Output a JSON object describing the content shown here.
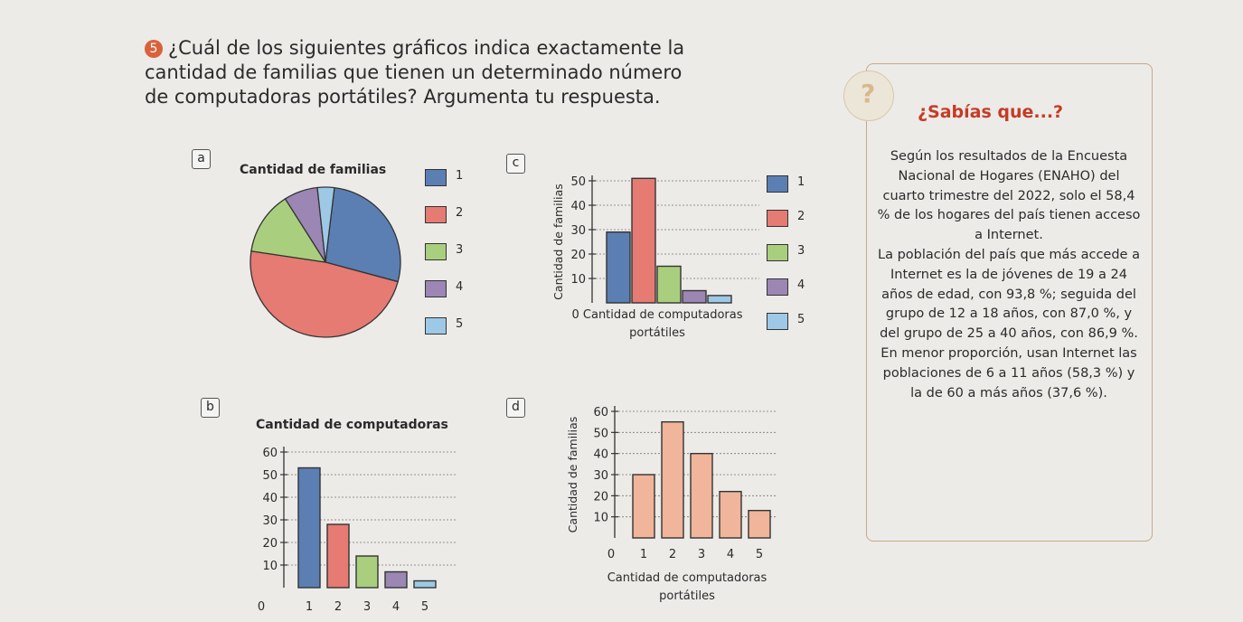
{
  "question": {
    "number": "5",
    "lines": [
      "¿Cuál de los siguientes gráficos indica exactamente la",
      "cantidad de familias que tienen un determinado número",
      "de computadoras portátiles? Argumenta tu respuesta."
    ]
  },
  "options": {
    "a": "a",
    "b": "b",
    "c": "c",
    "d": "d"
  },
  "sidebar": {
    "title": "¿Sabías que...?",
    "para1": "Según los resultados de la Encuesta Nacional de Hogares (ENAHO) del cuarto trimestre del 2022, solo el 58,4 % de los hogares del país tienen acceso a Internet.",
    "para2": "La población del país que más accede a Internet es la de jóvenes de 19 a 24 años de edad, con 93,8 %; seguida del grupo de 12 a 18 años, con 87,0 %, y del grupo de 25 a 40 años, con 86,9 %. En menor proporción, usan Internet las poblaciones de 6 a 11 años (58,3 %) y la de 60 a más años (37,6 %)."
  },
  "legend": {
    "labels": [
      "1",
      "2",
      "3",
      "4",
      "5"
    ],
    "colors": [
      "#5b7fb3",
      "#e57b72",
      "#a9cf7e",
      "#9b86b4",
      "#9ec9e6"
    ]
  },
  "chart_data": [
    {
      "id": "a",
      "type": "pie",
      "title": "Cantidad de familias",
      "labels": [
        "1",
        "2",
        "3",
        "4",
        "5"
      ],
      "values": [
        30,
        53,
        15,
        8,
        4
      ],
      "colors": [
        "#5b7fb3",
        "#e57b72",
        "#a9cf7e",
        "#9b86b4",
        "#9ec9e6"
      ]
    },
    {
      "id": "b",
      "type": "bar",
      "title": "Cantidad de computadoras",
      "categories": [
        "1",
        "2",
        "3",
        "4",
        "5"
      ],
      "values": [
        53,
        28,
        14,
        7,
        3
      ],
      "colors": [
        "#5b7fb3",
        "#e57b72",
        "#a9cf7e",
        "#9b86b4",
        "#9ec9e6"
      ],
      "xticks": [
        "0",
        "1",
        "2",
        "3",
        "4",
        "5"
      ],
      "yticks": [
        "10",
        "20",
        "30",
        "40",
        "50",
        "60"
      ],
      "ylim": [
        0,
        60
      ],
      "grid": true
    },
    {
      "id": "c",
      "type": "bar",
      "categories": [
        "1",
        "2",
        "3",
        "4",
        "5"
      ],
      "values": [
        29,
        51,
        15,
        5,
        3
      ],
      "colors": [
        "#5b7fb3",
        "#e57b72",
        "#a9cf7e",
        "#9b86b4",
        "#9ec9e6"
      ],
      "ylabel": "Cantidad de familias",
      "xlabel_lines": [
        "0 Cantidad de computadoras",
        "portátiles"
      ],
      "yticks": [
        "10",
        "20",
        "30",
        "40",
        "50"
      ],
      "ylim": [
        0,
        50
      ],
      "grid": true
    },
    {
      "id": "d",
      "type": "bar",
      "categories": [
        "1",
        "2",
        "3",
        "4",
        "5"
      ],
      "values": [
        30,
        55,
        40,
        22,
        13
      ],
      "color": "#f0b59a",
      "ylabel": "Cantidad de familias",
      "xlabel_lines": [
        "Cantidad de computadoras",
        "portátiles"
      ],
      "xticks": [
        "0",
        "1",
        "2",
        "3",
        "4",
        "5"
      ],
      "yticks": [
        "10",
        "20",
        "30",
        "40",
        "50",
        "60"
      ],
      "ylim": [
        0,
        60
      ],
      "grid": true
    }
  ]
}
